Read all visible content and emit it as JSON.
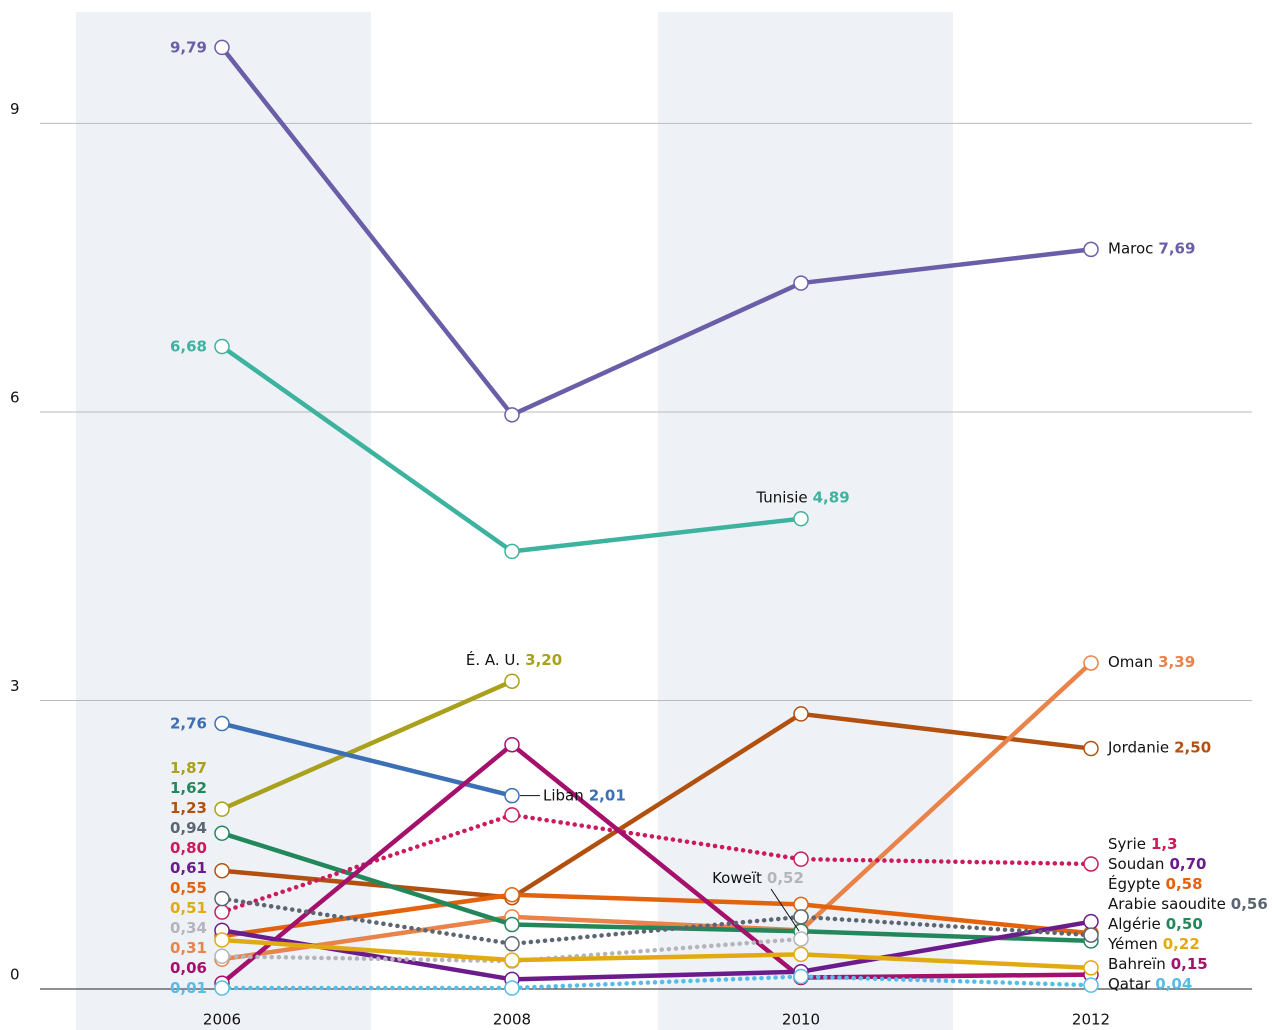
{
  "chart_data": {
    "type": "line",
    "categories": [
      "2006",
      "2008",
      "2010",
      "2012"
    ],
    "ylim": [
      0,
      10.2
    ],
    "yticks": [
      0,
      3,
      6,
      9
    ],
    "grid": true,
    "series": [
      {
        "name": "Maroc",
        "color": "#6b5ea8",
        "dotted": false,
        "values": [
          9.79,
          5.97,
          7.34,
          7.69
        ],
        "value_labels": [
          "9,79",
          null,
          null,
          "7,69"
        ]
      },
      {
        "name": "Tunisie",
        "color": "#3db39f",
        "dotted": false,
        "values": [
          6.68,
          4.55,
          4.89,
          null
        ],
        "value_labels": [
          "6,68",
          null,
          "4,89",
          null
        ]
      },
      {
        "name": "É. A. U.",
        "color": "#a9a11b",
        "dotted": false,
        "values": [
          1.87,
          3.2,
          null,
          null
        ],
        "value_labels": [
          "1,87",
          "3,20",
          null,
          null
        ]
      },
      {
        "name": "Liban",
        "color": "#3b6fb6",
        "dotted": false,
        "values": [
          2.76,
          2.01,
          null,
          null
        ],
        "value_labels": [
          "2,76",
          "2,01",
          null,
          null
        ]
      },
      {
        "name": "Jordanie",
        "color": "#b1500f",
        "dotted": false,
        "values": [
          1.23,
          0.95,
          2.86,
          2.5
        ],
        "value_labels": [
          "1,23",
          null,
          null,
          "2,50"
        ]
      },
      {
        "name": "Oman",
        "color": "#e9834a",
        "dotted": false,
        "values": [
          0.31,
          0.75,
          0.61,
          3.39
        ],
        "value_labels": [
          "0,31",
          null,
          null,
          "3,39"
        ]
      },
      {
        "name": "Égypte",
        "color": "#e2620e",
        "dotted": false,
        "values": [
          0.55,
          0.98,
          0.88,
          0.58
        ],
        "value_labels": [
          "0,55",
          null,
          null,
          "0,58"
        ]
      },
      {
        "name": "Algérie",
        "color": "#23875c",
        "dotted": false,
        "values": [
          1.62,
          0.67,
          0.6,
          0.5
        ],
        "value_labels": [
          "1,62",
          null,
          null,
          "0,50"
        ]
      },
      {
        "name": "Syrie",
        "color": "#cc1a5c",
        "dotted": true,
        "values": [
          0.8,
          1.81,
          1.35,
          1.3
        ],
        "value_labels": [
          "0,80",
          null,
          null,
          "1,3"
        ]
      },
      {
        "name": "Bahreïn",
        "color": "#a4106c",
        "dotted": false,
        "values": [
          0.06,
          2.54,
          0.12,
          0.15
        ],
        "value_labels": [
          "0,06",
          null,
          null,
          "0,15"
        ]
      },
      {
        "name": "Soudan",
        "color": "#6b1b8c",
        "dotted": false,
        "values": [
          0.61,
          0.1,
          0.18,
          0.7
        ],
        "value_labels": [
          "0,61",
          null,
          null,
          "0,70"
        ]
      },
      {
        "name": "Koweït",
        "color": "#b4b4ba",
        "dotted": true,
        "values": [
          0.34,
          0.29,
          0.52,
          null
        ],
        "value_labels": [
          "0,34",
          null,
          "0,52",
          null
        ]
      },
      {
        "name": "Arabie saoudite",
        "color": "#5c6672",
        "dotted": true,
        "values": [
          0.94,
          0.47,
          0.75,
          0.56
        ],
        "value_labels": [
          "0,94",
          null,
          null,
          "0,56"
        ]
      },
      {
        "name": "Yémen",
        "color": "#e2aa12",
        "dotted": false,
        "values": [
          0.51,
          0.3,
          0.36,
          0.22
        ],
        "value_labels": [
          "0,51",
          null,
          null,
          "0,22"
        ]
      },
      {
        "name": "Qatar",
        "color": "#55bde6",
        "dotted": true,
        "values": [
          0.01,
          0.01,
          0.13,
          0.04
        ],
        "value_labels": [
          "0,01",
          null,
          null,
          "0,04"
        ]
      }
    ]
  }
}
